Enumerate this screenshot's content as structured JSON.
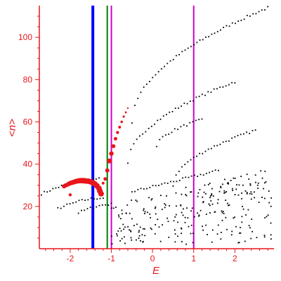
{
  "chart_data": {
    "type": "scatter",
    "xlabel": "E",
    "ylabel": "<n>",
    "xlim": [
      -2.75,
      2.95
    ],
    "ylim": [
      0,
      115
    ],
    "xticks": [
      "-2",
      "-1",
      "0",
      "1",
      "2"
    ],
    "xtick_values": [
      -2,
      -1,
      0,
      1,
      2
    ],
    "yticks": [
      "20",
      "40",
      "60",
      "80",
      "100"
    ],
    "ytick_values": [
      20,
      40,
      60,
      80,
      100
    ],
    "grid": false,
    "colors": {
      "axis": "#e8151a",
      "highlight": "#e8151a",
      "points": "#000000",
      "blue_line": "#0000ff",
      "green_line": "#008000",
      "magenta_line": "#cc00cc"
    },
    "vertical_lines": [
      {
        "x": -1.45,
        "color": "#0000ff",
        "width": "thick"
      },
      {
        "x": -1.1,
        "color": "#008000",
        "width": "thin"
      },
      {
        "x": -1.0,
        "color": "#cc00cc",
        "width": "thin"
      },
      {
        "x": 1.0,
        "color": "#cc00cc",
        "width": "thin"
      }
    ],
    "highlight_series": {
      "x": [
        -2.15,
        -2.1,
        -2.05,
        -2.0,
        -1.95,
        -1.9,
        -1.85,
        -1.8,
        -1.75,
        -1.7,
        -1.65,
        -1.6,
        -1.55,
        -1.5,
        -1.45,
        -1.4,
        -1.35,
        -1.3,
        -1.28,
        -1.25,
        -1.2,
        -1.15,
        -1.1,
        -1.05,
        -1.0,
        -0.95,
        -0.9,
        -0.85,
        -0.8,
        -0.75,
        -0.7,
        -0.65,
        -0.6,
        -2.0
      ],
      "y": [
        29.5,
        30,
        30.5,
        31,
        31.3,
        31.6,
        31.9,
        32.1,
        32.2,
        32.2,
        32.1,
        32,
        31.9,
        31.6,
        31.2,
        30.6,
        29.7,
        28.5,
        27.3,
        26,
        31,
        33,
        37,
        41.5,
        45,
        48.5,
        52,
        55,
        57.5,
        60,
        62.5,
        64.5,
        66.5,
        25.5
      ],
      "size": [
        3,
        3,
        3.2,
        3.4,
        3.5,
        3.6,
        3.7,
        3.8,
        3.9,
        4,
        4,
        4,
        4,
        4,
        4,
        4,
        4,
        4,
        4,
        4,
        2,
        2.5,
        3,
        3.5,
        3.2,
        2.8,
        2.5,
        2.2,
        2,
        1.8,
        1.6,
        1.4,
        1.2,
        2.2
      ]
    },
    "background_curves": [
      {
        "x0": -2.7,
        "x1": -1.3,
        "y_start": 26,
        "y_end": 33,
        "shape": "arc"
      },
      {
        "x0": -2.3,
        "x1": -1.2,
        "y_start": 19,
        "y_end": 24,
        "shape": "arc"
      },
      {
        "x0": -1.8,
        "x1": -1.0,
        "y_start": 17,
        "y_end": 21,
        "shape": "arc"
      },
      {
        "x0": -0.5,
        "x1": 2.8,
        "y_start": 60,
        "y_end": 114,
        "shape": "sqrt"
      },
      {
        "x0": -0.6,
        "x1": 2.0,
        "y_start": 40,
        "y_end": 79,
        "shape": "sqrt"
      },
      {
        "x0": 0.1,
        "x1": 1.2,
        "y_start": 48,
        "y_end": 61,
        "shape": "sqrt"
      },
      {
        "x0": -0.5,
        "x1": 1.6,
        "y_start": 27,
        "y_end": 37,
        "shape": "line"
      },
      {
        "x0": 0.5,
        "x1": 2.5,
        "y_start": 30,
        "y_end": 56,
        "shape": "sqrt"
      }
    ],
    "cloud": {
      "count": 260,
      "x_range": [
        -1.0,
        2.9
      ],
      "y_range": [
        2,
        38
      ]
    }
  }
}
